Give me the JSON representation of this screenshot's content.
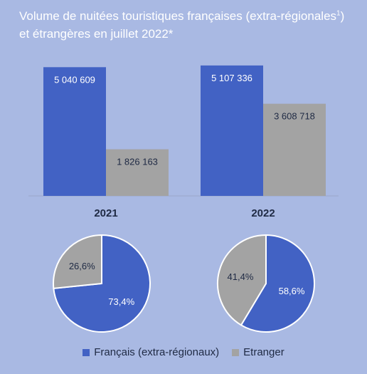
{
  "title": {
    "line1": "Volume de nuitées touristiques françaises (extra-régionales",
    "footnote_mark": "1",
    "line1_end": ")",
    "line2": "et étrangères en juillet 2022*"
  },
  "colors": {
    "background": "#a9b9e3",
    "francais": "#4262c4",
    "etranger": "#a3a3a3",
    "baseline": "#9aa6c8"
  },
  "legend": [
    {
      "label": "Français (extra-régionaux)",
      "color": "#4262c4"
    },
    {
      "label": "Etranger",
      "color": "#a3a3a3"
    }
  ],
  "chart_data": [
    {
      "type": "bar",
      "categories": [
        "2021",
        "2022"
      ],
      "series": [
        {
          "name": "Français (extra-régionaux)",
          "values": [
            5040609,
            5107336
          ],
          "labels": [
            "5 040 609",
            "5 107 336"
          ]
        },
        {
          "name": "Etranger",
          "values": [
            1826163,
            3608718
          ],
          "labels": [
            "1 826 163",
            "3 608 718"
          ]
        }
      ],
      "ylim": [
        0,
        5300000
      ],
      "grid": false,
      "legend": "bottom"
    },
    {
      "type": "pie",
      "title": "2021",
      "slices": [
        {
          "name": "Français (extra-régionaux)",
          "value": 73.4,
          "label": "73,4%"
        },
        {
          "name": "Etranger",
          "value": 26.6,
          "label": "26,6%"
        }
      ]
    },
    {
      "type": "pie",
      "title": "2022",
      "slices": [
        {
          "name": "Français (extra-régionaux)",
          "value": 58.6,
          "label": "58,6%"
        },
        {
          "name": "Etranger",
          "value": 41.4,
          "label": "41,4%"
        }
      ]
    }
  ]
}
